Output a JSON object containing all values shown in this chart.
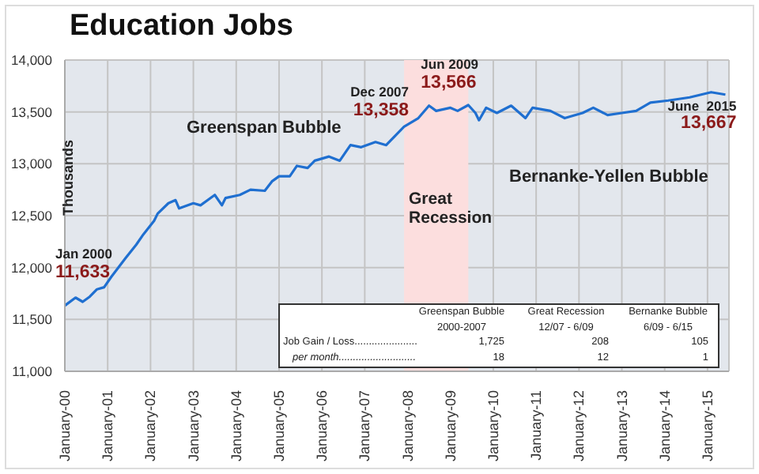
{
  "chart_data": {
    "type": "line",
    "title": "Education Jobs",
    "ylabel": "Thousands",
    "x": [
      "2000-01",
      "2000-04",
      "2000-06",
      "2000-08",
      "2000-10",
      "2000-12",
      "2001-02",
      "2001-06",
      "2001-09",
      "2001-11",
      "2002-02",
      "2002-03",
      "2002-06",
      "2002-08",
      "2002-09",
      "2003-01",
      "2003-03",
      "2003-07",
      "2003-09",
      "2003-10",
      "2004-02",
      "2004-05",
      "2004-09",
      "2004-11",
      "2005-01",
      "2005-04",
      "2005-06",
      "2005-09",
      "2005-11",
      "2006-03",
      "2006-06",
      "2006-09",
      "2006-12",
      "2007-04",
      "2007-07",
      "2007-12",
      "2008-04",
      "2008-07",
      "2008-09",
      "2009-01",
      "2009-03",
      "2009-06",
      "2009-08",
      "2009-09",
      "2009-11",
      "2010-02",
      "2010-06",
      "2010-10",
      "2010-12",
      "2011-05",
      "2011-09",
      "2012-02",
      "2012-05",
      "2012-09",
      "2013-01",
      "2013-05",
      "2013-09",
      "2014-02",
      "2014-08",
      "2015-02",
      "2015-06"
    ],
    "series": [
      {
        "color": "#1f6fd0",
        "values": [
          11633,
          11710,
          11670,
          11720,
          11790,
          11810,
          11910,
          12090,
          12220,
          12320,
          12450,
          12520,
          12620,
          12650,
          12570,
          12620,
          12600,
          12700,
          12600,
          12670,
          12700,
          12750,
          12740,
          12830,
          12880,
          12880,
          12980,
          12960,
          13030,
          13070,
          13030,
          13180,
          13160,
          13210,
          13180,
          13358,
          13440,
          13560,
          13510,
          13540,
          13510,
          13566,
          13490,
          13420,
          13540,
          13490,
          13560,
          13440,
          13540,
          13510,
          13440,
          13490,
          13540,
          13470,
          13490,
          13510,
          13590,
          13610,
          13640,
          13690,
          13667
        ]
      }
    ],
    "xlim": [
      "2000-01",
      "2015-07"
    ],
    "xticks": [
      {
        "value": "2000-01",
        "label": "January-00"
      },
      {
        "value": "2001-01",
        "label": "January-01"
      },
      {
        "value": "2002-01",
        "label": "January-02"
      },
      {
        "value": "2003-01",
        "label": "January-03"
      },
      {
        "value": "2004-01",
        "label": "January-04"
      },
      {
        "value": "2005-01",
        "label": "January-05"
      },
      {
        "value": "2006-01",
        "label": "January-06"
      },
      {
        "value": "2007-01",
        "label": "January-07"
      },
      {
        "value": "2008-01",
        "label": "January-08"
      },
      {
        "value": "2009-01",
        "label": "January-09"
      },
      {
        "value": "2010-01",
        "label": "January-10"
      },
      {
        "value": "2011-01",
        "label": "January-11"
      },
      {
        "value": "2012-01",
        "label": "January-12"
      },
      {
        "value": "2013-01",
        "label": "January-13"
      },
      {
        "value": "2014-01",
        "label": "January-14"
      },
      {
        "value": "2015-01",
        "label": "January-15"
      }
    ],
    "ylim": [
      11000,
      14000
    ],
    "yticks": [
      {
        "value": 11000,
        "label": "11,000"
      },
      {
        "value": 11500,
        "label": "11,500"
      },
      {
        "value": 12000,
        "label": "12,000"
      },
      {
        "value": 12500,
        "label": "12,500"
      },
      {
        "value": 13000,
        "label": "13,000"
      },
      {
        "value": 13500,
        "label": "13,500"
      },
      {
        "value": 14000,
        "label": "14,000"
      }
    ],
    "grid": true,
    "marker": "none",
    "line_style": "solid",
    "bands": [
      {
        "axis": "x",
        "from": "2007-12",
        "to": "2009-06",
        "label": "Great Recession",
        "color": "#fcdede"
      }
    ],
    "annotations": [
      {
        "text": "Jan 2000\n11,633",
        "x": "2000-01",
        "y": 11633
      },
      {
        "text": "Dec 2007\n13,358",
        "x": "2007-12",
        "y": 13358
      },
      {
        "text": "Jun 2009\n13,566",
        "x": "2009-06",
        "y": 13566
      },
      {
        "text": "June  2015\n13,667",
        "x": "2015-06",
        "y": 13667
      },
      "Greenspan Bubble",
      "Bernanke-Yellen Bubble",
      "Greenspan Bubble",
      "Great Recession",
      "Bernanke Bubble",
      "2000-2007",
      "12/07 - 6/09",
      "6/09 - 6/15",
      "Job Gain / Loss......................",
      "1,725",
      "208",
      "105",
      "per month...........................",
      "18",
      "12",
      "1"
    ]
  }
}
